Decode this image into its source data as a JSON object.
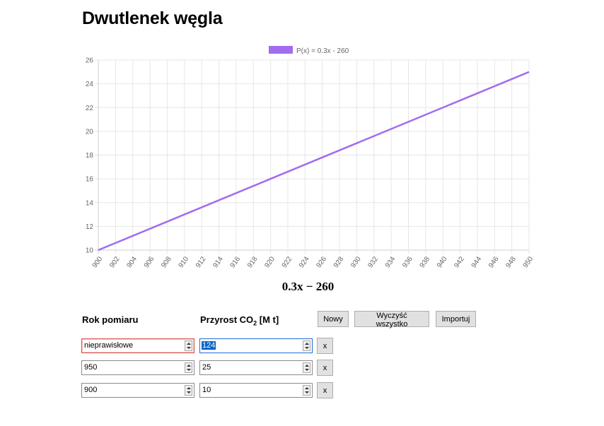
{
  "page": {
    "title": "Dwutlenek węgla"
  },
  "chart_data": {
    "type": "line",
    "series": [
      {
        "name": "P(x) = 0.3x - 260",
        "color": "#a06cf0",
        "x": [
          900,
          950
        ],
        "y": [
          10,
          25
        ]
      }
    ],
    "x_ticks": [
      900,
      902,
      904,
      906,
      908,
      910,
      912,
      914,
      916,
      918,
      920,
      922,
      924,
      926,
      928,
      930,
      932,
      934,
      936,
      938,
      940,
      942,
      944,
      946,
      948,
      950
    ],
    "y_ticks": [
      10,
      12,
      14,
      16,
      18,
      20,
      22,
      24,
      26
    ],
    "xlim": [
      900,
      950
    ],
    "ylim": [
      10,
      26
    ],
    "grid": true,
    "legend_position": "top"
  },
  "formula": "0.3x − 260",
  "table": {
    "col_year": "Rok pomiaru",
    "col_growth": "Przyrost CO",
    "col_growth_sub": "2",
    "col_growth_unit": " [M t]",
    "rows": [
      {
        "year": "nieprawisłowe",
        "growth": "124",
        "delete": "x"
      },
      {
        "year": "950",
        "growth": "25",
        "delete": "x"
      },
      {
        "year": "900",
        "growth": "10",
        "delete": "x"
      }
    ]
  },
  "buttons": {
    "new": "Nowy",
    "clear_all": "Wyczyść wszystko",
    "import": "Importuj"
  }
}
